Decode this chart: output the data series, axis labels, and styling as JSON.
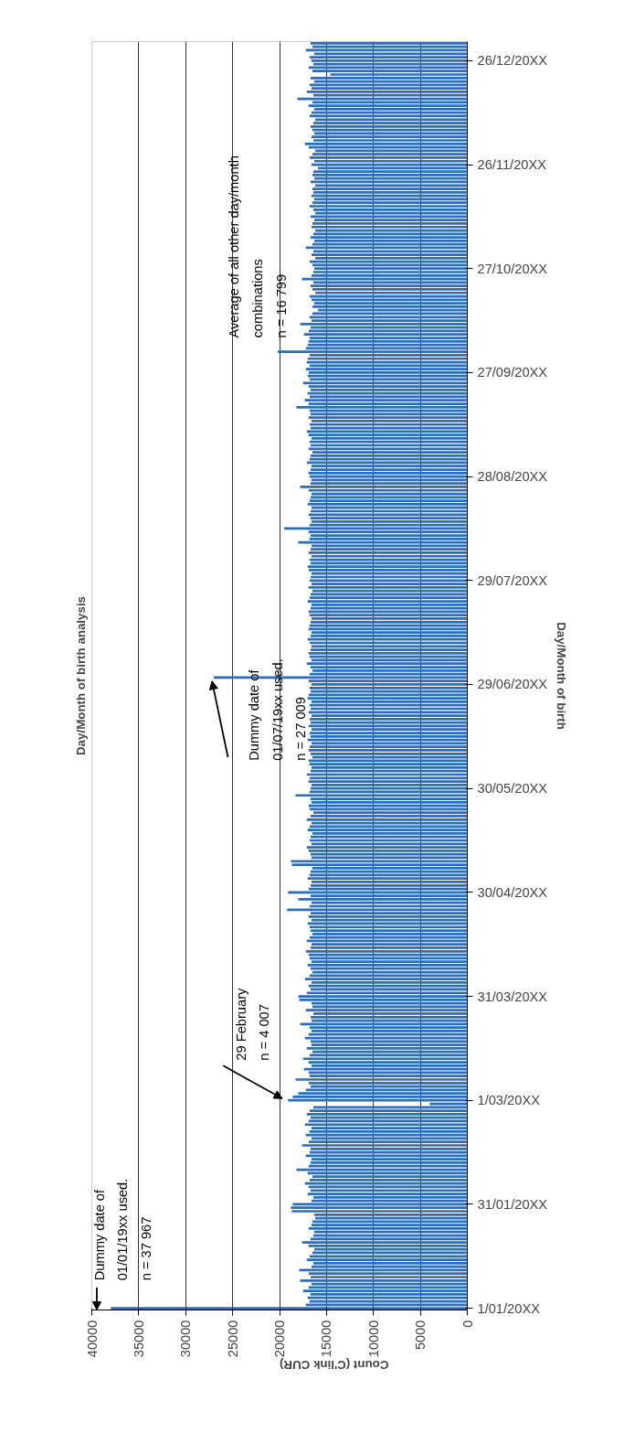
{
  "chart_data": {
    "type": "bar",
    "orientation": "horizontal",
    "title": "Day/Month of birth analysis",
    "xlabel": "Count (C'link CUR)",
    "ylabel": "Day/Month of birth",
    "color": "#2a6ebb",
    "categories": [
      null,
      null,
      null,
      null,
      null,
      "26/12/20XX",
      null,
      null,
      null,
      null,
      null,
      null,
      null,
      null,
      null,
      null,
      null,
      null,
      null,
      null,
      null,
      null,
      null,
      null,
      null,
      null,
      null,
      null,
      null,
      null,
      null,
      null,
      null,
      null,
      null,
      "26/11/20XX",
      null,
      null,
      null,
      null,
      null,
      null,
      null,
      null,
      null,
      null,
      null,
      null,
      null,
      null,
      null,
      null,
      null,
      null,
      null,
      null,
      null,
      null,
      null,
      null,
      null,
      null,
      null,
      null,
      null,
      "27/10/20XX",
      null,
      null,
      null,
      null,
      null,
      null,
      null,
      null,
      null,
      null,
      null,
      null,
      null,
      null,
      null,
      null,
      null,
      null,
      null,
      null,
      null,
      null,
      null,
      null,
      null,
      null,
      null,
      null,
      null,
      "27/09/20XX",
      null,
      null,
      null,
      null,
      null,
      null,
      null,
      null,
      null,
      null,
      null,
      null,
      null,
      null,
      null,
      null,
      null,
      null,
      null,
      null,
      null,
      null,
      null,
      null,
      null,
      null,
      null,
      null,
      null,
      "28/08/20XX",
      null,
      null,
      null,
      null,
      null,
      null,
      null,
      null,
      null,
      null,
      null,
      null,
      null,
      null,
      null,
      null,
      null,
      null,
      null,
      null,
      null,
      null,
      null,
      null,
      null,
      null,
      null,
      null,
      null,
      "29/07/20XX",
      null,
      null,
      null,
      null,
      null,
      null,
      null,
      null,
      null,
      null,
      null,
      null,
      null,
      null,
      null,
      null,
      null,
      null,
      null,
      null,
      null,
      null,
      null,
      null,
      null,
      null,
      null,
      null,
      null,
      "29/06/20XX",
      null,
      null,
      null,
      null,
      null,
      null,
      null,
      null,
      null,
      null,
      null,
      null,
      null,
      null,
      null,
      null,
      null,
      null,
      null,
      null,
      null,
      null,
      null,
      null,
      null,
      null,
      null,
      null,
      null,
      "30/05/20XX",
      null,
      null,
      null,
      null,
      null,
      null,
      null,
      null,
      null,
      null,
      null,
      null,
      null,
      null,
      null,
      null,
      null,
      null,
      null,
      null,
      null,
      null,
      null,
      null,
      null,
      null,
      null,
      null,
      null,
      "30/04/20XX",
      null,
      null,
      null,
      null,
      null,
      null,
      null,
      null,
      null,
      null,
      null,
      null,
      null,
      null,
      null,
      null,
      null,
      null,
      null,
      null,
      null,
      null,
      null,
      null,
      null,
      null,
      null,
      null,
      null,
      "31/03/20XX",
      null,
      null,
      null,
      null,
      null,
      null,
      null,
      null,
      null,
      null,
      null,
      null,
      null,
      null,
      null,
      null,
      null,
      null,
      null,
      null,
      null,
      null,
      null,
      null,
      null,
      null,
      null,
      null,
      null,
      "1/03/20XX",
      null,
      null,
      null,
      null,
      null,
      null,
      null,
      null,
      null,
      null,
      null,
      null,
      null,
      null,
      null,
      null,
      null,
      null,
      null,
      null,
      null,
      null,
      null,
      null,
      null,
      null,
      null,
      null,
      null,
      "31/01/20XX",
      null,
      null,
      null,
      null,
      null,
      null,
      null,
      null,
      null,
      null,
      null,
      null,
      null,
      null,
      null,
      null,
      null,
      null,
      null,
      null,
      null,
      null,
      null,
      null,
      null,
      null,
      null,
      null,
      null,
      "1/01/20XX"
    ],
    "values": [
      16700,
      16500,
      17200,
      16300,
      16800,
      16600,
      16400,
      16900,
      16500,
      14600,
      16700,
      16300,
      16800,
      16600,
      17100,
      16400,
      18100,
      16500,
      16900,
      16300,
      16600,
      16800,
      16200,
      16400,
      16700,
      16500,
      16300,
      16600,
      16400,
      17300,
      16900,
      16200,
      16500,
      16800,
      16300,
      16600,
      15900,
      16400,
      16500,
      16300,
      16700,
      16200,
      16500,
      16400,
      16600,
      16300,
      16500,
      16800,
      16400,
      16200,
      16700,
      16300,
      16500,
      16600,
      16200,
      16400,
      16700,
      16300,
      16500,
      17200,
      16400,
      16600,
      16200,
      16800,
      16500,
      16300,
      16400,
      16600,
      17600,
      16400,
      16700,
      16500,
      16200,
      16800,
      16600,
      16300,
      16500,
      15900,
      16500,
      16800,
      16600,
      17800,
      16700,
      16900,
      17400,
      16800,
      16900,
      17000,
      17200,
      20200,
      16800,
      17000,
      17100,
      16800,
      17200,
      16900,
      17000,
      16800,
      17500,
      16900,
      16700,
      17000,
      16800,
      17300,
      16900,
      18200,
      16800,
      16700,
      16900,
      16600,
      16800,
      16700,
      17100,
      16900,
      16600,
      16800,
      16700,
      16900,
      16500,
      16700,
      16800,
      17100,
      16600,
      16700,
      16900,
      16800,
      16600,
      16700,
      17800,
      16900,
      16600,
      16700,
      16800,
      17000,
      16600,
      16700,
      16900,
      16700,
      16600,
      16800,
      19500,
      16900,
      16700,
      16800,
      18000,
      16600,
      16700,
      16900,
      16600,
      16800,
      16700,
      17000,
      16900,
      16600,
      16700,
      16800,
      16600,
      16900,
      16500,
      16700,
      16800,
      17000,
      16600,
      16700,
      16900,
      16800,
      16600,
      16700,
      16800,
      16900,
      16600,
      16700,
      17000,
      16800,
      16600,
      16700,
      16900,
      16800,
      16600,
      17100,
      16700,
      16500,
      16800,
      27009,
      16900,
      16600,
      16800,
      16700,
      16900,
      17000,
      16600,
      16800,
      16700,
      16900,
      16600,
      16800,
      16700,
      16900,
      16600,
      16800,
      16700,
      17000,
      16600,
      16800,
      16900,
      16700,
      16500,
      16900,
      16800,
      16600,
      16700,
      17100,
      16800,
      16900,
      16600,
      16700,
      16800,
      18300,
      16700,
      16600,
      16900,
      16800,
      16400,
      16700,
      17100,
      16600,
      16800,
      17000,
      16500,
      16700,
      16800,
      16600,
      17100,
      16900,
      16700,
      16600,
      18800,
      18700,
      16500,
      16700,
      16800,
      17000,
      16600,
      16700,
      16900,
      19100,
      16700,
      18000,
      16600,
      16800,
      19200,
      16700,
      16900,
      16600,
      17000,
      16800,
      16700,
      16500,
      16800,
      17100,
      16600,
      16700,
      17200,
      16900,
      16800,
      16600,
      17000,
      16700,
      16500,
      16800,
      17300,
      16600,
      16900,
      16700,
      17100,
      18000,
      17900,
      16600,
      16500,
      17200,
      16400,
      16700,
      16600,
      17800,
      16800,
      16600,
      16900,
      17300,
      16700,
      16600,
      17100,
      16500,
      16800,
      17500,
      16900,
      16600,
      17400,
      16900,
      16800,
      18300,
      16900,
      16700,
      17200,
      18000,
      18600,
      19100,
      4007,
      16400,
      16800,
      17100,
      16700,
      16900,
      17300,
      16600,
      16800,
      17200,
      16600,
      16900,
      17600,
      16700,
      16800,
      17200,
      16600,
      16700,
      16900,
      18200,
      17000,
      16500,
      16800,
      17300,
      16900,
      16700,
      17000,
      16400,
      16600,
      18600,
      18800,
      18700,
      16300,
      16200,
      16500,
      16600,
      16900,
      16300,
      16400,
      16700,
      17600,
      16900,
      16300,
      16500,
      16800,
      17100,
      16400,
      16600,
      17900,
      16900,
      16700,
      17800,
      16600,
      16900,
      17500,
      16700,
      17000,
      16800,
      17200,
      37967
    ],
    "xlim": [
      40000,
      0
    ],
    "xticks": [
      40000,
      35000,
      30000,
      25000,
      20000,
      15000,
      10000,
      5000,
      0
    ],
    "grid": "x",
    "annotations": [
      {
        "text": "Dummy date of\n01/01/19xx used.\nn = 37 967",
        "y": "1/01/20XX",
        "x": 37967
      },
      "29 February\nn = 4 007",
      "Dummy date of\n01/07/19xx used.\nn = 27 009",
      "Average of  all other day/month\ncombinations\nn = 16 799"
    ]
  }
}
